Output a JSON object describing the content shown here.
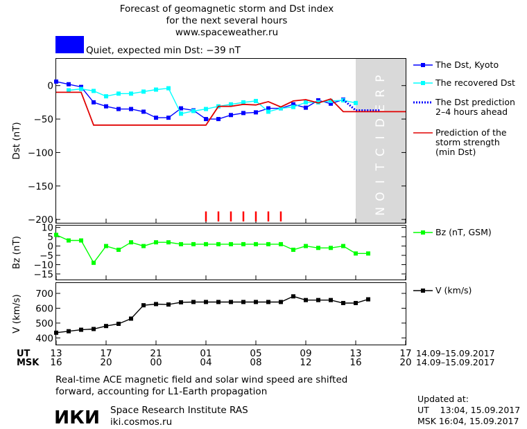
{
  "header": {
    "title_line1": "Forecast of geomagnetic storm and Dst index",
    "title_line2": "for the next several hours",
    "site": "www.spaceweather.ru",
    "status_color": "#0000ff",
    "status_text": "Quiet, expected min Dst: −39 nT"
  },
  "chart_data": [
    {
      "type": "line",
      "ylabel": "Dst (nT)",
      "ylim": [
        -205,
        40
      ],
      "yticks": [
        "0",
        "−50",
        "−100",
        "−150",
        "−200"
      ],
      "ytick_values": [
        0,
        -50,
        -100,
        -150,
        -200
      ],
      "prediction_label": "PREDICTION",
      "prediction_zone": [
        13,
        17
      ],
      "storm_markers": {
        "color": "#ff0000",
        "x": [
          1,
          2,
          3,
          4,
          5,
          6,
          7
        ],
        "y_range": [
          -203,
          -188
        ]
      },
      "legend": [
        {
          "key": "dst",
          "lines": [
            "The Dst, Kyoto"
          ]
        },
        {
          "key": "rec",
          "lines": [
            "The recovered Dst"
          ]
        },
        {
          "key": "pred",
          "lines": [
            "The Dst prediction",
            "2–4 hours ahead"
          ]
        },
        {
          "key": "storm",
          "lines": [
            "Prediction of the",
            "storm strength",
            "(min Dst)"
          ]
        }
      ],
      "series": [
        {
          "key": "dst",
          "color": "#0000ff",
          "marker": true,
          "x": [
            -11,
            -10,
            -9,
            -8,
            -7,
            -6,
            -5,
            -4,
            -3,
            -2,
            -1,
            0,
            1,
            2,
            3,
            4,
            5,
            6,
            7,
            8,
            9,
            10,
            11,
            12
          ],
          "y": [
            6,
            2,
            -2,
            -25,
            -31,
            -35,
            -35,
            -39,
            -48,
            -48,
            -34,
            -37,
            -50,
            -50,
            -44,
            -41,
            -40,
            -34,
            -34,
            -28,
            -33,
            -22,
            -27,
            -21
          ]
        },
        {
          "key": "rec",
          "color": "#00ffff",
          "marker": true,
          "x": [
            -10,
            -9,
            -8,
            -7,
            -6,
            -5,
            -4,
            -3,
            -2,
            -1,
            0,
            1,
            2,
            3,
            4,
            5,
            6,
            7,
            8,
            9,
            10,
            11,
            12,
            13
          ],
          "y": [
            -7,
            -5,
            -8,
            -16,
            -12,
            -12,
            -9,
            -6,
            -4,
            -42,
            -38,
            -35,
            -31,
            -28,
            -25,
            -23,
            -39,
            -34,
            -32,
            -25,
            -25,
            -23,
            -22,
            -26
          ]
        },
        {
          "key": "pred",
          "color": "#0000ff",
          "dashed": true,
          "x": [
            12,
            13,
            14,
            15
          ],
          "y": [
            -21,
            -37,
            -37,
            -37
          ]
        },
        {
          "key": "storm",
          "color": "#e00000",
          "stepped": true,
          "x": [
            -11,
            -9,
            -8,
            1,
            2,
            3,
            4,
            5,
            6,
            7,
            8,
            9,
            10,
            11,
            12,
            13,
            14,
            15,
            16,
            17
          ],
          "y": [
            -10,
            -10,
            -59,
            -59,
            -31,
            -31,
            -28,
            -29,
            -24,
            -32,
            -23,
            -21,
            -26,
            -20,
            -39,
            -39,
            -39,
            -39,
            -39,
            -39
          ]
        }
      ]
    },
    {
      "type": "line",
      "ylabel": "Bz (nT)",
      "ylim": [
        -18,
        11
      ],
      "yticks": [
        "10",
        "5",
        "0",
        "−5",
        "−10",
        "−15"
      ],
      "ytick_values": [
        10,
        5,
        0,
        -5,
        -10,
        -15
      ],
      "legend": [
        {
          "key": "bz",
          "lines": [
            "Bz (nT, GSM)"
          ]
        }
      ],
      "series": [
        {
          "key": "bz",
          "color": "#00ff00",
          "marker": true,
          "x": [
            -11,
            -10,
            -9,
            -8,
            -7,
            -6,
            -5,
            -4,
            -3,
            -2,
            -1,
            0,
            1,
            2,
            3,
            4,
            5,
            6,
            7,
            8,
            9,
            10,
            11,
            12,
            13,
            14
          ],
          "y": [
            6,
            3,
            3,
            -9,
            0,
            -2,
            2,
            0,
            2,
            2,
            1,
            1,
            1,
            1,
            1,
            1,
            1,
            1,
            1,
            -2,
            0,
            -1,
            -1,
            0,
            -4,
            -4
          ]
        }
      ]
    },
    {
      "type": "line",
      "ylabel": "V (km/s)",
      "ylim": [
        355,
        770
      ],
      "yticks": [
        "700",
        "600",
        "500",
        "400"
      ],
      "ytick_values": [
        700,
        600,
        500,
        400
      ],
      "legend": [
        {
          "key": "v",
          "lines": [
            "V (km/s)"
          ]
        }
      ],
      "series": [
        {
          "key": "v",
          "color": "#000000",
          "marker": true,
          "x": [
            -11,
            -10,
            -9,
            -8,
            -7,
            -6,
            -5,
            -4,
            -3,
            -2,
            -1,
            0,
            1,
            2,
            3,
            4,
            5,
            6,
            7,
            8,
            9,
            10,
            11,
            12,
            13,
            14
          ],
          "y": [
            435,
            445,
            455,
            460,
            480,
            495,
            530,
            620,
            628,
            625,
            640,
            642,
            642,
            642,
            642,
            642,
            642,
            642,
            642,
            680,
            655,
            655,
            655,
            635,
            635,
            660
          ]
        }
      ]
    }
  ],
  "xaxis": {
    "xlim": [
      -11,
      17
    ],
    "ut_label": "UT",
    "msk_label": "MSK",
    "ut_ticks": [
      "13",
      "17",
      "21",
      "01",
      "05",
      "09",
      "13",
      "17"
    ],
    "msk_ticks": [
      "16",
      "20",
      "00",
      "04",
      "08",
      "12",
      "16",
      "20"
    ],
    "tick_x": [
      -11,
      -7,
      -3,
      1,
      5,
      9,
      13,
      17
    ],
    "date_range": "14.09–15.09.2017"
  },
  "footer": {
    "note_line1": "Real-time ACE magnetic field and solar wind speed are shifted",
    "note_line2": "forward, accounting for L1-Earth propagation",
    "logo_text": "ИКИ",
    "institute": "Space Research Institute RAS",
    "site": "iki.cosmos.ru",
    "updated_label": "Updated at:",
    "updated_ut": "UT    13:04, 15.09.2017",
    "updated_msk": "MSK 16:04, 15.09.2017"
  }
}
